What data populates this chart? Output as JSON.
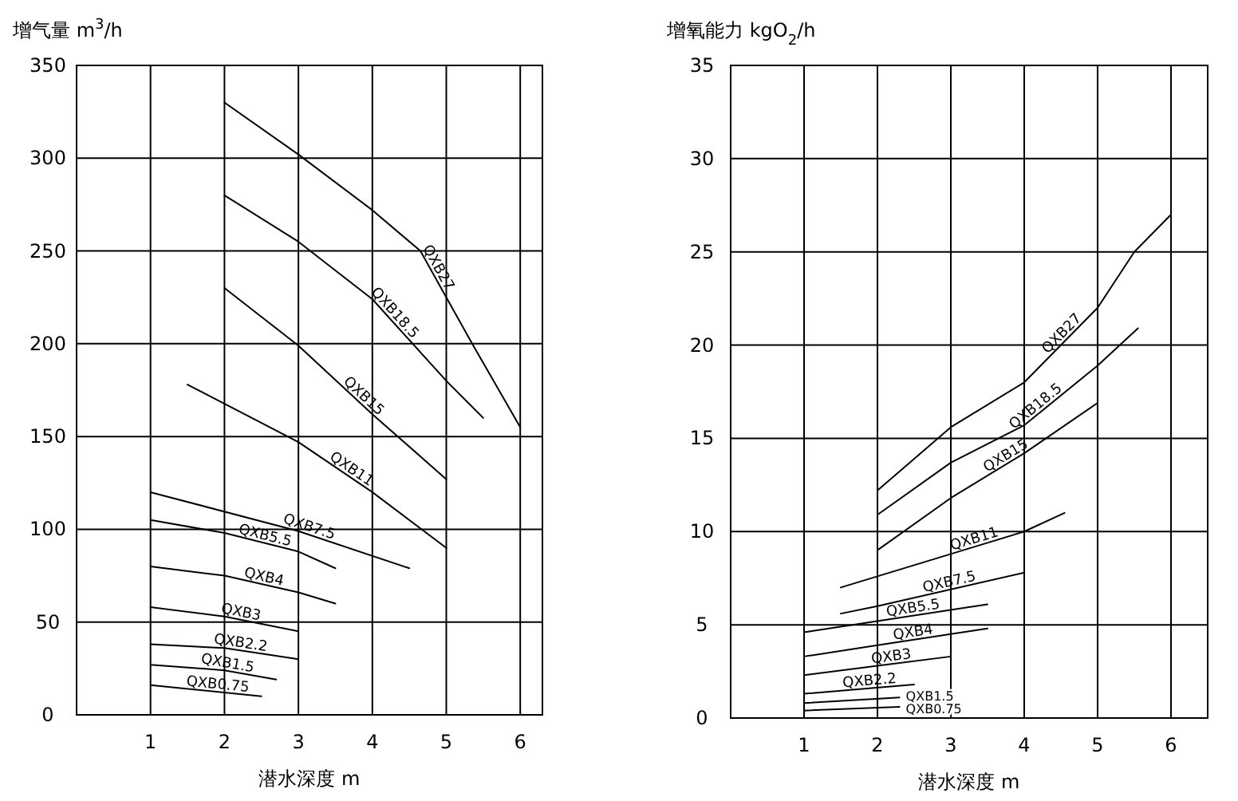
{
  "chart_data": [
    {
      "type": "line",
      "ylabel": "增气量 m$^{3}$/h",
      "xlabel": "潜水深度 m",
      "xlim": [
        0,
        6.3
      ],
      "ylim": [
        0,
        350
      ],
      "xticks": [
        1,
        2,
        3,
        4,
        5,
        6
      ],
      "yticks": [
        0,
        50,
        100,
        150,
        200,
        250,
        300,
        350
      ],
      "grid": true,
      "line_style": "solid",
      "series": [
        {
          "name": "QXB27",
          "color": "#000000",
          "x": [
            2,
            3,
            4,
            4.65,
            5,
            5.35,
            6
          ],
          "values": [
            330,
            302,
            272,
            250,
            225,
            200,
            155
          ]
        },
        {
          "name": "QXB18.5",
          "color": "#000000",
          "x": [
            2,
            3,
            4,
            5,
            5.5
          ],
          "values": [
            280,
            255,
            224,
            180,
            160
          ]
        },
        {
          "name": "QXB15",
          "color": "#000000",
          "x": [
            2,
            3,
            4,
            5
          ],
          "values": [
            230,
            199,
            162,
            127
          ]
        },
        {
          "name": "QXB11",
          "color": "#000000",
          "x": [
            1.5,
            3,
            4,
            5
          ],
          "values": [
            178,
            147,
            120,
            90
          ]
        },
        {
          "name": "QXB7.5",
          "color": "#000000",
          "x": [
            1,
            3,
            4.5
          ],
          "values": [
            120,
            99,
            79
          ]
        },
        {
          "name": "QXB5.5",
          "color": "#000000",
          "x": [
            1,
            2,
            3,
            3.5
          ],
          "values": [
            105,
            98,
            88,
            79
          ]
        },
        {
          "name": "QXB4",
          "color": "#000000",
          "x": [
            1,
            2,
            3,
            3.5
          ],
          "values": [
            80,
            75,
            66,
            60
          ]
        },
        {
          "name": "QXB3",
          "color": "#000000",
          "x": [
            1,
            2,
            3
          ],
          "values": [
            58,
            53,
            45
          ]
        },
        {
          "name": "QXB2.2",
          "color": "#000000",
          "x": [
            1,
            2,
            3
          ],
          "values": [
            38,
            36,
            30
          ]
        },
        {
          "name": "QXB1.5",
          "color": "#000000",
          "x": [
            1,
            2,
            2.7
          ],
          "values": [
            27,
            24,
            19
          ]
        },
        {
          "name": "QXB0.75",
          "color": "#000000",
          "x": [
            1,
            2.5
          ],
          "values": [
            16,
            10
          ]
        }
      ]
    },
    {
      "type": "line",
      "ylabel": "增氧能力 kgO$_{2}$/h",
      "xlabel": "潜水深度 m",
      "xlim": [
        0,
        6.5
      ],
      "ylim": [
        0,
        35
      ],
      "xticks": [
        1,
        2,
        3,
        4,
        5,
        6
      ],
      "yticks": [
        0,
        5,
        10,
        15,
        20,
        25,
        30,
        35
      ],
      "grid": true,
      "line_style": "solid",
      "series": [
        {
          "name": "QXB27",
          "color": "#000000",
          "x": [
            2,
            3,
            4,
            5,
            5.5,
            6
          ],
          "values": [
            12.2,
            15.6,
            18,
            22,
            25,
            27
          ]
        },
        {
          "name": "QXB18.5",
          "color": "#000000",
          "x": [
            2,
            3,
            4,
            5,
            5.55
          ],
          "values": [
            10.9,
            13.7,
            15.7,
            18.9,
            20.9
          ]
        },
        {
          "name": "QXB15",
          "color": "#000000",
          "x": [
            2,
            3,
            4,
            5
          ],
          "values": [
            9,
            11.8,
            14.2,
            16.9
          ]
        },
        {
          "name": "QXB11",
          "color": "#000000",
          "x": [
            1.5,
            3,
            4,
            4.55
          ],
          "values": [
            7,
            8.8,
            10,
            11
          ]
        },
        {
          "name": "QXB7.5",
          "color": "#000000",
          "x": [
            1.5,
            2,
            4
          ],
          "values": [
            5.6,
            6,
            7.8
          ]
        },
        {
          "name": "QXB5.5",
          "color": "#000000",
          "x": [
            1,
            2,
            3.5
          ],
          "values": [
            4.6,
            5.2,
            6.1
          ]
        },
        {
          "name": "QXB4",
          "color": "#000000",
          "x": [
            1,
            2,
            3.5
          ],
          "values": [
            3.3,
            3.9,
            4.8
          ]
        },
        {
          "name": "QXB3",
          "color": "#000000",
          "x": [
            1,
            2,
            3
          ],
          "values": [
            2.3,
            2.8,
            3.3
          ]
        },
        {
          "name": "QXB2.2",
          "color": "#000000",
          "x": [
            1,
            2.5
          ],
          "values": [
            1.3,
            1.8
          ]
        },
        {
          "name": "QXB1.5",
          "color": "#000000",
          "x": [
            1,
            2.3
          ],
          "values": [
            0.8,
            1.1
          ]
        },
        {
          "name": "QXB0.75",
          "color": "#000000",
          "x": [
            1,
            2.3
          ],
          "values": [
            0.4,
            0.6
          ]
        }
      ]
    }
  ]
}
